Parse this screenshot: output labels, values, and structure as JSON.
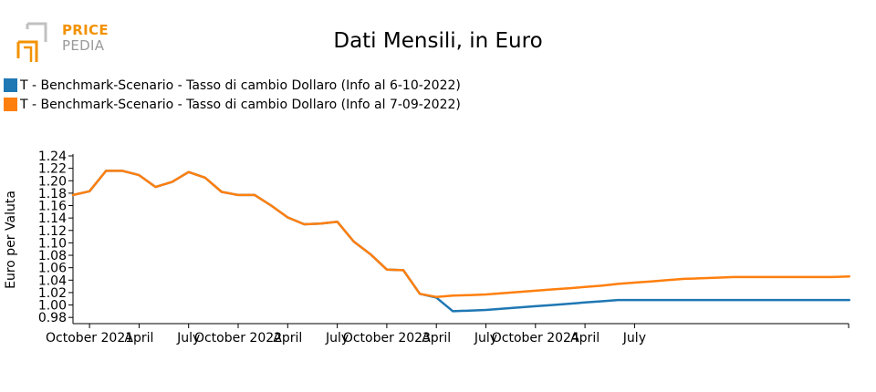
{
  "logo": {
    "line1": "PRICE",
    "line2": "PEDIA"
  },
  "colors": {
    "series1": "#1f77b4",
    "series2": "#ff7f0e",
    "logo_orange": "#f39200",
    "logo_gray": "#9a9a9a"
  },
  "chart_data": {
    "type": "line",
    "title": "Dati Mensili, in Euro",
    "ylabel": "Euro per Valuta",
    "xlabel": "",
    "ylim": [
      0.97,
      1.24
    ],
    "yticks": [
      "0.98",
      "1.00",
      "1.02",
      "1.04",
      "1.06",
      "1.08",
      "1.10",
      "1.12",
      "1.14",
      "1.16",
      "1.18",
      "1.20",
      "1.22",
      "1.24"
    ],
    "xticks": [
      "October 2021",
      "April",
      "July",
      "October 2022",
      "April",
      "July",
      "October 2023",
      "April",
      "July",
      "October 2024",
      "April",
      "July"
    ],
    "legend_position": "top-left",
    "grid": false,
    "x": [
      "2021-09",
      "2021-10",
      "2021-11",
      "2021-12",
      "2022-01",
      "2022-02",
      "2022-03",
      "2022-04",
      "2022-05",
      "2022-06",
      "2022-07",
      "2022-08",
      "2022-09",
      "2022-10",
      "2022-11",
      "2022-12",
      "2023-01",
      "2023-02",
      "2023-03",
      "2023-04",
      "2023-05",
      "2023-06",
      "2023-07",
      "2023-08",
      "2023-09",
      "2023-10",
      "2023-11",
      "2023-12",
      "2024-01",
      "2024-02",
      "2024-03",
      "2024-04",
      "2024-05",
      "2024-06",
      "2024-07",
      "2024-08",
      "2024-09",
      "2024-10",
      "2024-11",
      "2024-12",
      "2025-01",
      "2025-02",
      "2025-03",
      "2025-04",
      "2025-05",
      "2025-06",
      "2025-07",
      "2025-08"
    ],
    "series": [
      {
        "name": "T - Benchmark-Scenario - Tasso di cambio Dollaro (Info al 6-10-2022)",
        "color": "#1f77b4",
        "values": [
          1.177,
          1.183,
          1.216,
          1.216,
          1.209,
          1.19,
          1.198,
          1.214,
          1.205,
          1.182,
          1.177,
          1.177,
          1.16,
          1.141,
          1.13,
          1.131,
          1.134,
          1.102,
          1.082,
          1.057,
          1.056,
          1.018,
          1.012,
          0.99,
          0.991,
          0.992,
          0.994,
          0.996,
          0.998,
          1.0,
          1.002,
          1.004,
          1.006,
          1.008,
          1.008,
          1.008,
          1.008,
          1.008,
          1.008,
          1.008,
          1.008,
          1.008,
          1.008,
          1.008,
          1.008,
          1.008,
          1.008,
          1.008
        ]
      },
      {
        "name": "T - Benchmark-Scenario - Tasso di cambio Dollaro (Info al 7-09-2022)",
        "color": "#ff7f0e",
        "values": [
          1.177,
          1.183,
          1.216,
          1.216,
          1.209,
          1.19,
          1.198,
          1.214,
          1.205,
          1.182,
          1.177,
          1.177,
          1.16,
          1.141,
          1.13,
          1.131,
          1.134,
          1.102,
          1.082,
          1.057,
          1.056,
          1.018,
          1.013,
          1.015,
          1.016,
          1.017,
          1.019,
          1.021,
          1.023,
          1.025,
          1.027,
          1.029,
          1.031,
          1.034,
          1.036,
          1.038,
          1.04,
          1.042,
          1.043,
          1.044,
          1.045,
          1.045,
          1.045,
          1.045,
          1.045,
          1.045,
          1.045,
          1.046
        ]
      }
    ]
  }
}
